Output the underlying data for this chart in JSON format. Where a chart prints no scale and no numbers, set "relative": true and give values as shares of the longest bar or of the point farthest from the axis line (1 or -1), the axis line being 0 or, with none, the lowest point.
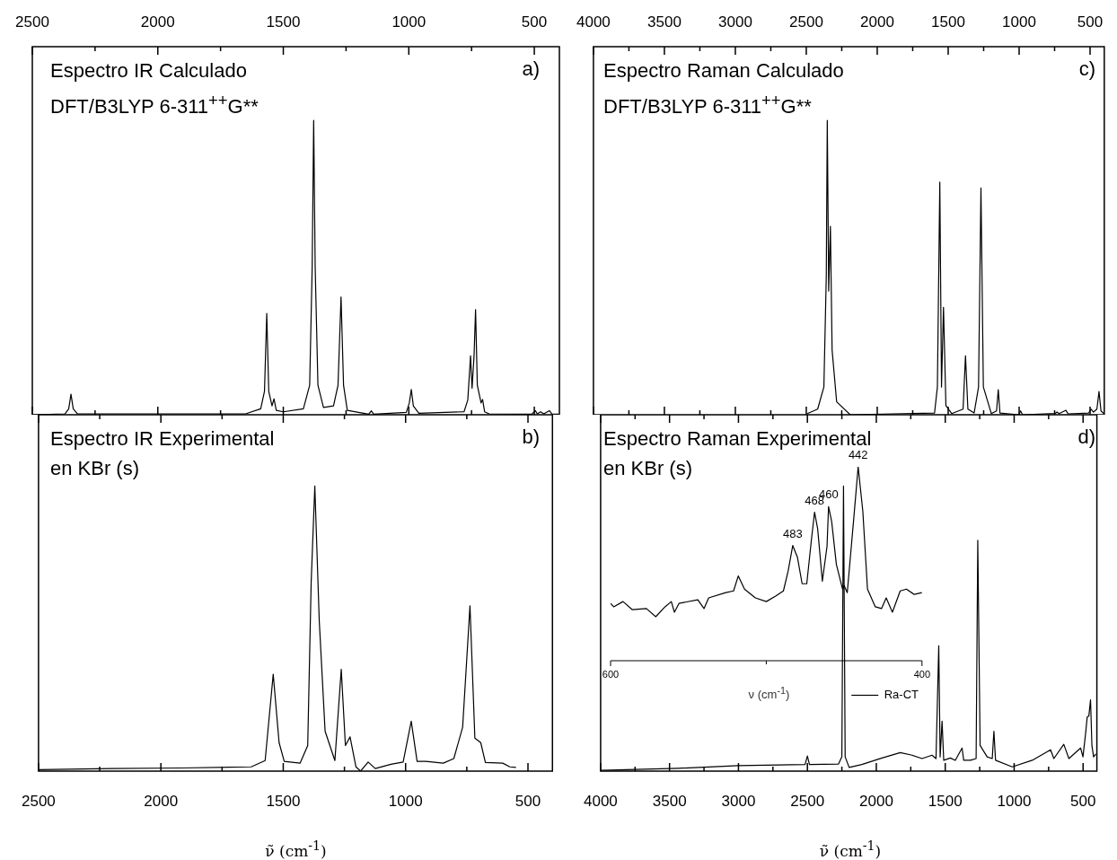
{
  "chart_data": [
    {
      "type": "line",
      "title": "Espectro IR Calculado",
      "subtitle": "DFT/B3LYP 6-311$^{++}$G**",
      "annotations": [
        "a)"
      ],
      "relative": true,
      "color": "#000000",
      "xlim": [
        2500,
        400
      ],
      "xticks": [
        2500,
        {
          "value": 2250,
          "label": null
        },
        2000,
        {
          "value": 1750,
          "label": null
        },
        1500,
        {
          "value": 1250,
          "label": null
        },
        1000,
        {
          "value": 750,
          "label": null
        },
        500
      ],
      "x": [
        2500,
        2370,
        2355,
        2346,
        2337,
        2320,
        1650,
        1590,
        1575,
        1566,
        1558,
        1545,
        1537,
        1528,
        1500,
        1420,
        1395,
        1385,
        1379,
        1373,
        1362,
        1340,
        1300,
        1282,
        1270,
        1260,
        1245,
        1160,
        1149,
        1140,
        1010,
        998,
        990,
        982,
        960,
        780,
        765,
        754,
        748,
        740,
        734,
        727,
        712,
        706,
        698,
        680,
        510,
        496,
        488,
        475,
        462,
        440,
        430,
        403
      ],
      "values": [
        0,
        0.003,
        0.02,
        0.07,
        0.02,
        0.003,
        0.003,
        0.02,
        0.08,
        0.344,
        0.08,
        0.03,
        0.054,
        0.015,
        0.01,
        0.02,
        0.1,
        0.5,
        1,
        0.5,
        0.1,
        0.025,
        0.03,
        0.1,
        0.4,
        0.1,
        0.015,
        0.002,
        0.013,
        0.002,
        0.008,
        0.04,
        0.086,
        0.03,
        0.005,
        0.01,
        0.05,
        0.2,
        0.09,
        0.2,
        0.357,
        0.1,
        0.04,
        0.052,
        0.01,
        0.003,
        0.002,
        0.014,
        0.003,
        0.01,
        0.003,
        0.014,
        0.003,
        0.002
      ]
    },
    {
      "type": "line",
      "title": "Espectro IR Experimental",
      "subtitle": "en KBr (s)",
      "annotations": [
        "b)"
      ],
      "relative": true,
      "color": "#000000",
      "xlabel": "ν̃ (cm$^{-1}$)",
      "xlim": [
        2500,
        400
      ],
      "xticks": [
        2500,
        {
          "value": 2250,
          "label": null
        },
        2000,
        {
          "value": 1750,
          "label": null
        },
        1500,
        {
          "value": 1250,
          "label": null
        },
        1000,
        {
          "value": 750,
          "label": null
        },
        500
      ],
      "x": [
        2500,
        2203,
        1917,
        1631,
        1574,
        1541,
        1517,
        1496,
        1431,
        1400,
        1386,
        1371,
        1353,
        1329,
        1289,
        1263,
        1246,
        1227,
        1203,
        1184,
        1153,
        1124,
        1060,
        1010,
        977,
        953,
        917,
        846,
        803,
        767,
        737,
        717,
        693,
        674,
        603,
        574,
        549
      ],
      "values": [
        0.005,
        0.009,
        0.011,
        0.015,
        0.037,
        0.34,
        0.1,
        0.034,
        0.028,
        0.09,
        0.66,
        1,
        0.53,
        0.14,
        0.037,
        0.357,
        0.09,
        0.12,
        0.015,
        0,
        0.032,
        0.009,
        0.024,
        0.032,
        0.175,
        0.034,
        0.034,
        0.028,
        0.044,
        0.154,
        0.58,
        0.116,
        0.1,
        0.03,
        0.028,
        0.015,
        0.013
      ]
    },
    {
      "type": "line",
      "title": "Espectro Raman Calculado",
      "subtitle": "DFT/B3LYP 6-311$^{++}$G**",
      "annotations": [
        "c)"
      ],
      "relative": true,
      "color": "#000000",
      "xlim": [
        4000,
        400
      ],
      "xticks": [
        4000,
        {
          "value": 3750,
          "label": null
        },
        3500,
        {
          "value": 3250,
          "label": null
        },
        3000,
        {
          "value": 2750,
          "label": null
        },
        2500,
        {
          "value": 2250,
          "label": null
        },
        2000,
        {
          "value": 1750,
          "label": null
        },
        1500,
        {
          "value": 1250,
          "label": null
        },
        1000,
        {
          "value": 750,
          "label": null
        },
        500
      ],
      "x": [
        2493,
        2420,
        2376,
        2359,
        2352,
        2342,
        2330,
        2318,
        2286,
        2190,
        1596,
        1576,
        1559,
        1547,
        1533,
        1516,
        1475,
        1395,
        1378,
        1361,
        1317,
        1286,
        1269,
        1252,
        1196,
        1159,
        1147,
        1135,
        1002,
        990,
        975,
        747,
        733,
        718,
        670,
        655,
        510,
        493,
        476,
        452,
        437,
        423,
        404
      ],
      "values": [
        0.004,
        0.019,
        0.094,
        0.47,
        1,
        0.42,
        0.64,
        0.22,
        0.044,
        0,
        0.006,
        0.094,
        0.79,
        0.094,
        0.365,
        0.031,
        0.004,
        0.019,
        0.2,
        0.019,
        0.006,
        0.094,
        0.77,
        0.094,
        0.004,
        0.013,
        0.085,
        0.006,
        0,
        0.013,
        0,
        0.004,
        0.009,
        0.004,
        0.015,
        0.003,
        0.006,
        0.019,
        0.009,
        0.019,
        0.079,
        0.013,
        0.004
      ]
    },
    {
      "type": "line",
      "title": "Espectro Raman Experimental",
      "subtitle": "en KBr (s)",
      "annotations": [
        "d)"
      ],
      "relative": true,
      "color": "#000000",
      "xlabel": "ν̃ (cm$^{-1}$)",
      "xlim": [
        4000,
        400
      ],
      "xticks": [
        4000,
        {
          "value": 3750,
          "label": null
        },
        3500,
        {
          "value": 3250,
          "label": null
        },
        3000,
        {
          "value": 2750,
          "label": null
        },
        2500,
        {
          "value": 2250,
          "label": null
        },
        2000,
        {
          "value": 1750,
          "label": null
        },
        1500,
        {
          "value": 1250,
          "label": null
        },
        1000,
        {
          "value": 750,
          "label": null
        },
        500
      ],
      "x": [
        4000,
        3438,
        3001,
        2517,
        2500,
        2485,
        2274,
        2250,
        2238,
        2226,
        2197,
        2105,
        1959,
        1826,
        1741,
        1668,
        1596,
        1567,
        1547,
        1537,
        1523,
        1511,
        1463,
        1427,
        1378,
        1366,
        1342,
        1317,
        1276,
        1264,
        1247,
        1196,
        1159,
        1147,
        1135,
        1014,
        869,
        736,
        712,
        640,
        603,
        518,
        501,
        482,
        470,
        458,
        446,
        436,
        424,
        407
      ],
      "values": [
        0.003,
        0.01,
        0.019,
        0.023,
        0.053,
        0.023,
        0.025,
        0.05,
        1,
        0.05,
        0.013,
        0.023,
        0.046,
        0.065,
        0.056,
        0.044,
        0.056,
        0.044,
        0.44,
        0.05,
        0.175,
        0.038,
        0.046,
        0.038,
        0.081,
        0.038,
        0.038,
        0.038,
        0.044,
        0.81,
        0.09,
        0.05,
        0.044,
        0.14,
        0.038,
        0.015,
        0.038,
        0.075,
        0.044,
        0.094,
        0.044,
        0.081,
        0.05,
        0.131,
        0.19,
        0.194,
        0.25,
        0.09,
        0.05,
        0.06
      ]
    },
    {
      "type": "line",
      "relative": true,
      "xlabel": "ν (cm$^{-1}$)",
      "legend": "bottom right",
      "xlim": [
        600,
        400
      ],
      "xticks": [
        600,
        {
          "value": 500,
          "label": null
        },
        400
      ],
      "annotations": [
        {
          "text": "483",
          "x": 483,
          "y": 0.594
        },
        {
          "text": "468",
          "x": 469,
          "y": 0.766
        },
        {
          "text": "460",
          "x": 460,
          "y": 0.795
        },
        {
          "text": "442",
          "x": 441,
          "y": 1
        }
      ],
      "x": [
        600,
        598,
        592,
        586,
        577,
        571,
        565,
        561,
        559,
        556,
        544,
        540,
        537,
        526,
        521,
        518,
        514,
        507,
        500,
        494,
        489,
        486,
        483,
        480,
        477,
        474,
        471,
        469,
        467,
        464,
        461,
        460,
        458,
        455,
        451,
        450,
        448,
        444,
        441,
        438,
        435,
        430,
        426,
        423,
        419,
        414,
        410,
        405,
        400
      ],
      "series": [
        {
          "name": "Ra-CT",
          "color": "#000000",
          "values": [
            0.296,
            0.278,
            0.305,
            0.263,
            0.269,
            0.227,
            0.278,
            0.305,
            0.25,
            0.296,
            0.314,
            0.269,
            0.324,
            0.351,
            0.36,
            0.437,
            0.369,
            0.324,
            0.305,
            0.333,
            0.36,
            0.461,
            0.594,
            0.534,
            0.397,
            0.397,
            0.625,
            0.766,
            0.68,
            0.41,
            0.589,
            0.795,
            0.717,
            0.497,
            0.369,
            0.388,
            0.351,
            0.717,
            1,
            0.771,
            0.369,
            0.278,
            0.269,
            0.324,
            0.25,
            0.36,
            0.369,
            0.342,
            0.351
          ]
        }
      ]
    }
  ]
}
